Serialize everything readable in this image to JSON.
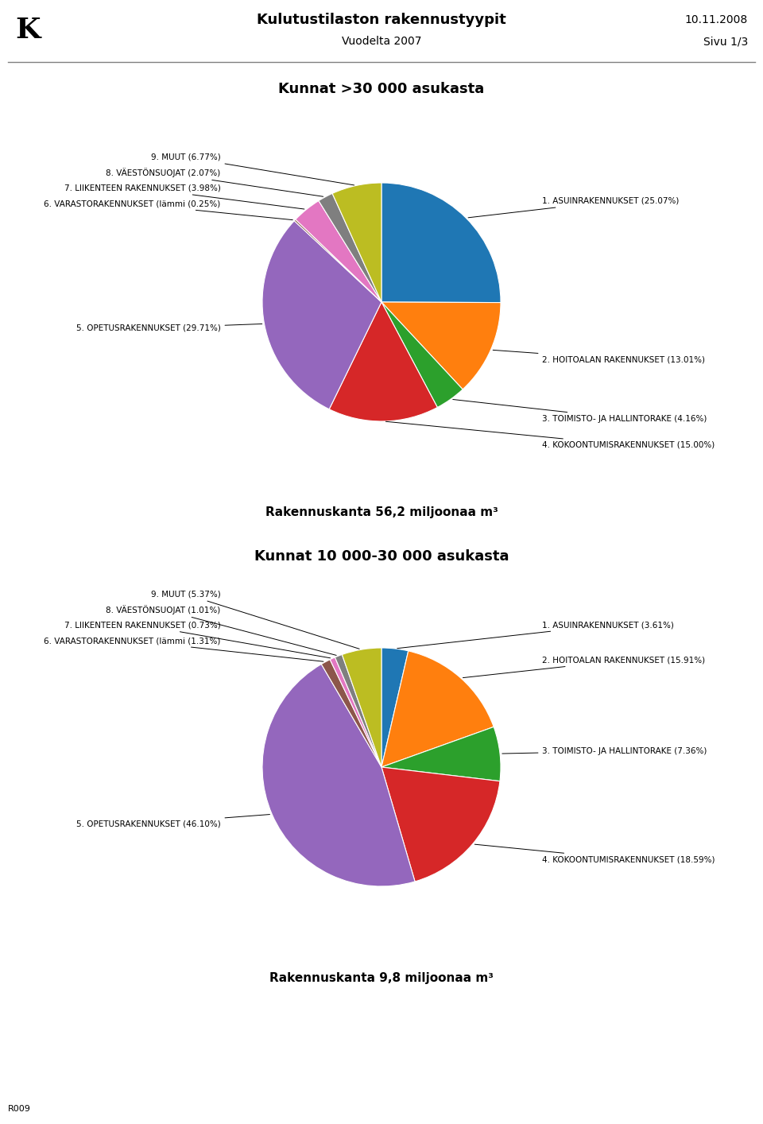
{
  "title": "Kulutustilaston rakennustyypit",
  "subtitle": "Vuodelta 2007",
  "annotations": [
    "K",
    "10.11.2008",
    "Sivu 1/3",
    "R009"
  ],
  "chart_data": [
    {
      "type": "pie",
      "title": "Kunnat >30 000 asukasta",
      "subtitle": "Rakennuskanta 56,2 miljoonaa m³",
      "categories": [
        "1. ASUINRAKENNUKSET (25.07%)",
        "2. HOITOALAN RAKENNUKSET (13.01%)",
        "3. TOIMISTO- JA HALLINTORAKE (4.16%)",
        "4. KOKOONTUMISRAKENNUKSET (15.00%)",
        "5. OPETUSRAKENNUKSET (29.71%)",
        "6. VARASTORAKENNUKSET (lämmi (0.25%)",
        "7. LIIKENTEEN RAKENNUKSET (3.98%)",
        "8. VÄESTÖNSUOJAT (2.07%)",
        "9. MUUT (6.77%)"
      ],
      "values": [
        25.07,
        13.01,
        4.16,
        15.0,
        29.71,
        0.25,
        3.98,
        2.07,
        6.77
      ]
    },
    {
      "type": "pie",
      "title": "Kunnat 10 000-30 000 asukasta",
      "subtitle": "Rakennuskanta 9,8 miljoonaa m³",
      "categories": [
        "1. ASUINRAKENNUKSET (3.61%)",
        "2. HOITOALAN RAKENNUKSET (15.91%)",
        "3. TOIMISTO- JA HALLINTORAKE (7.36%)",
        "4. KOKOONTUMISRAKENNUKSET (18.59%)",
        "5. OPETUSRAKENNUKSET (46.10%)",
        "6. VARASTORAKENNUKSET (lämmi (1.31%)",
        "7. LIIKENTEEN RAKENNUKSET (0.73%)",
        "8. VÄESTÖNSUOJAT (1.01%)",
        "9. MUUT (5.37%)"
      ],
      "values": [
        3.61,
        15.91,
        7.36,
        18.59,
        46.1,
        1.31,
        0.73,
        1.01,
        5.37
      ]
    }
  ]
}
